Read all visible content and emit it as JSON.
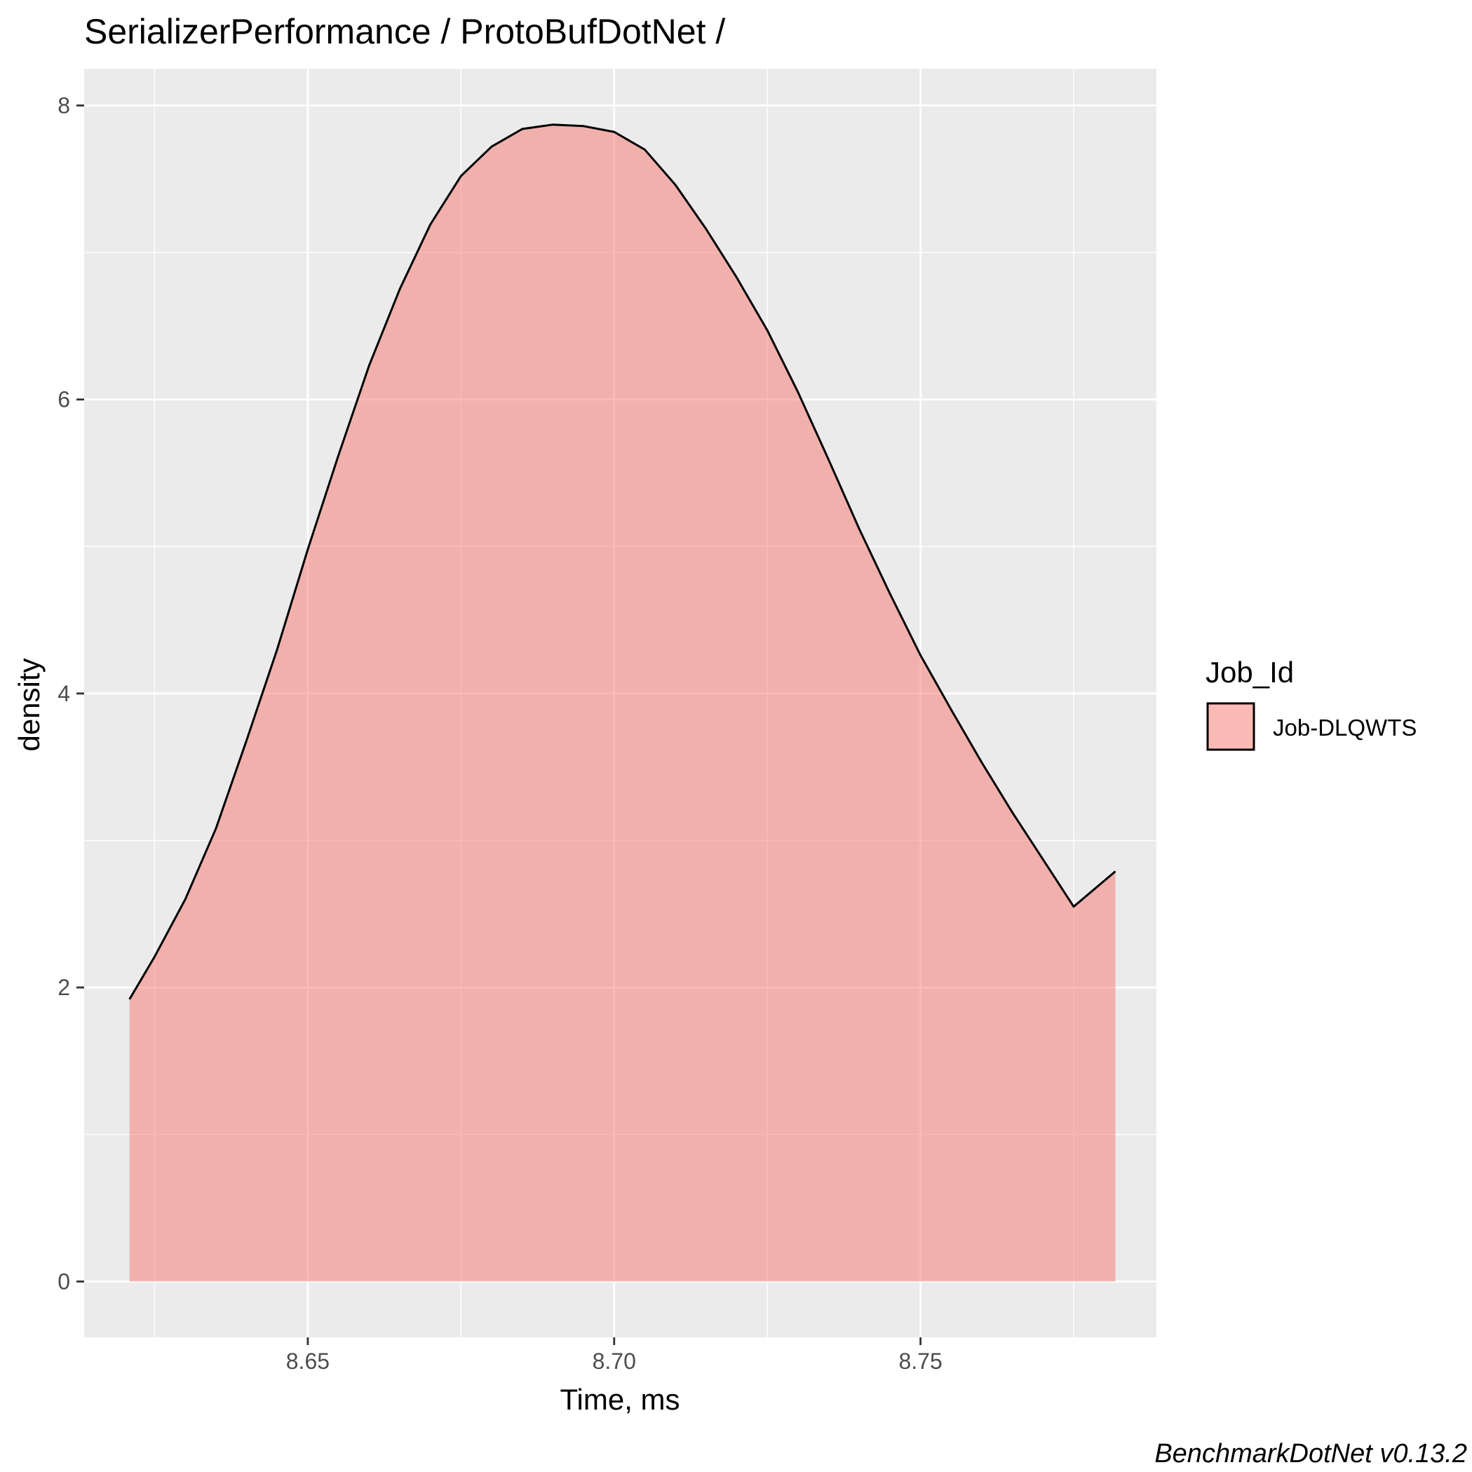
{
  "chart_data": {
    "type": "area",
    "subtype": "density",
    "title": "SerializerPerformance / ProtoBufDotNet /",
    "xlabel": "Time, ms",
    "ylabel": "density",
    "xlim": [
      8.6135,
      8.7885
    ],
    "ylim": [
      -0.38,
      8.25
    ],
    "x_ticks": [
      8.65,
      8.7,
      8.75
    ],
    "x_tick_labels": [
      "8.65",
      "8.70",
      "8.75"
    ],
    "x_minor_ticks": [
      8.625,
      8.675,
      8.725,
      8.775
    ],
    "y_ticks": [
      0,
      2,
      4,
      6,
      8
    ],
    "y_tick_labels": [
      "0",
      "2",
      "4",
      "6",
      "8"
    ],
    "y_minor_ticks": [
      1,
      3,
      5,
      7
    ],
    "grid": true,
    "legend": {
      "title": "Job_Id",
      "position": "right",
      "entries": [
        {
          "label": "Job-DLQWTS",
          "color": "#F8766D"
        }
      ]
    },
    "series": [
      {
        "name": "Job-DLQWTS",
        "fill_color": "#F8766D",
        "fill_alpha": 0.5,
        "line_color": "#000000",
        "x": [
          8.6209,
          8.625,
          8.63,
          8.635,
          8.64,
          8.645,
          8.65,
          8.655,
          8.66,
          8.665,
          8.67,
          8.675,
          8.68,
          8.685,
          8.69,
          8.695,
          8.7,
          8.705,
          8.71,
          8.715,
          8.72,
          8.725,
          8.73,
          8.735,
          8.74,
          8.745,
          8.75,
          8.755,
          8.76,
          8.765,
          8.77,
          8.775,
          8.7818
        ],
        "y": [
          1.92,
          2.21,
          2.6,
          3.08,
          3.68,
          4.3,
          4.98,
          5.62,
          6.23,
          6.75,
          7.19,
          7.52,
          7.72,
          7.84,
          7.87,
          7.86,
          7.82,
          7.7,
          7.46,
          7.16,
          6.83,
          6.47,
          6.05,
          5.59,
          5.12,
          4.68,
          4.26,
          3.89,
          3.53,
          3.19,
          2.87,
          2.55,
          2.79
        ]
      }
    ]
  },
  "caption": "BenchmarkDotNet v0.13.2",
  "colors": {
    "panel_background": "#EBEBEB",
    "grid_line": "#FFFFFF",
    "tick_color": "#333333"
  }
}
